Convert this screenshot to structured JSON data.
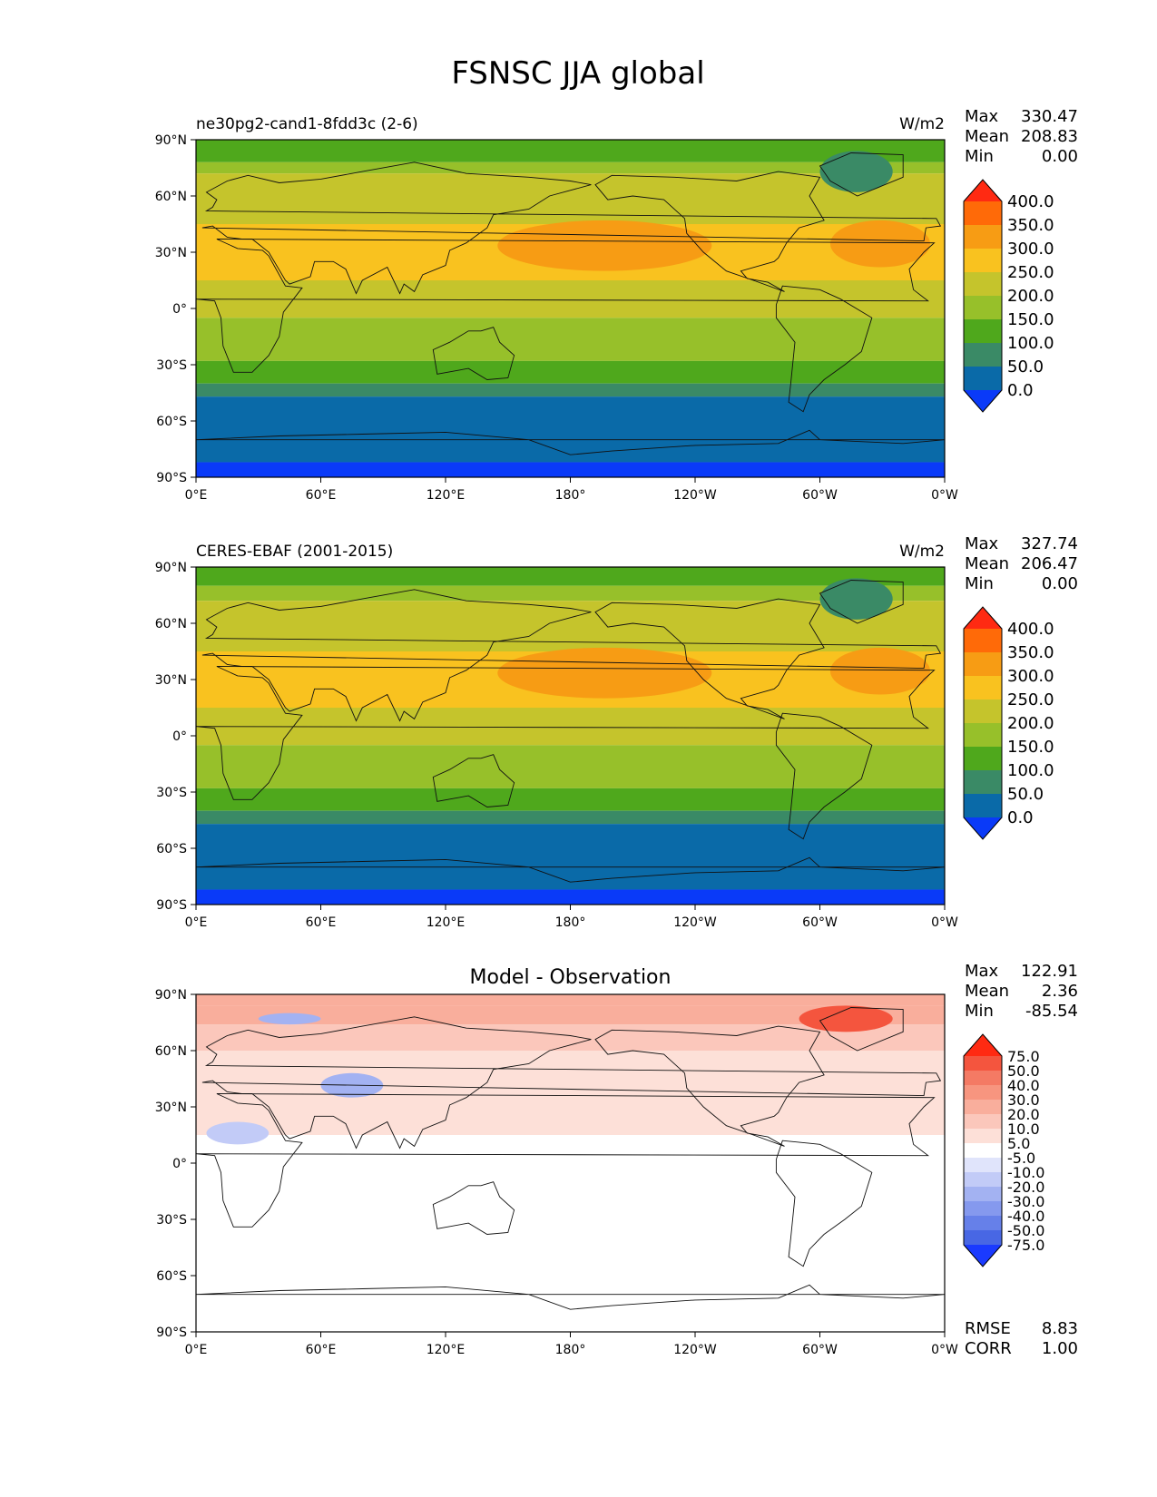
{
  "title": "FSNSC JJA global",
  "lat_ticks": [
    "90°N",
    "60°N",
    "30°N",
    "0°",
    "30°S",
    "60°S",
    "90°S"
  ],
  "lon_ticks": [
    "0°E",
    "60°E",
    "120°E",
    "180°",
    "120°W",
    "60°W",
    "0°W"
  ],
  "chart_data": [
    {
      "type": "heatmap",
      "subtitle": "ne30pg2-cand1-8fdd3c (2-6)",
      "units": "W/m2",
      "stats": {
        "labels": [
          "Max",
          "Mean",
          "Min"
        ],
        "values": [
          "330.47",
          "208.83",
          "0.00"
        ]
      },
      "colorbar": {
        "labels": [
          "400.0",
          "350.0",
          "300.0",
          "250.0",
          "200.0",
          "150.0",
          "100.0",
          "50.0",
          "0.0"
        ],
        "colors": [
          "#ff2a12",
          "#ff6a08",
          "#f79c14",
          "#f9c21f",
          "#c5c42c",
          "#97c02a",
          "#4fa81c",
          "#3a8a66",
          "#0a6aa8",
          "#0a3af8"
        ]
      },
      "zonal_bands": [
        {
          "lat_top": 90,
          "lat_bottom": 78,
          "value": 150
        },
        {
          "lat_top": 78,
          "lat_bottom": 72,
          "value": 200
        },
        {
          "lat_top": 72,
          "lat_bottom": 45,
          "value": 250
        },
        {
          "lat_top": 45,
          "lat_bottom": 15,
          "value": 280
        },
        {
          "lat_top": 15,
          "lat_bottom": -5,
          "value": 250
        },
        {
          "lat_top": -5,
          "lat_bottom": -15,
          "value": 200
        },
        {
          "lat_top": -15,
          "lat_bottom": -28,
          "value": 170
        },
        {
          "lat_top": -28,
          "lat_bottom": -40,
          "value": 130
        },
        {
          "lat_top": -40,
          "lat_bottom": -47,
          "value": 75
        },
        {
          "lat_top": -47,
          "lat_bottom": -82,
          "value": 30
        },
        {
          "lat_top": -82,
          "lat_bottom": -90,
          "value": 0
        }
      ],
      "highs": [
        {
          "name": "north-pacific-high",
          "lon_min": 145,
          "lon_max": 248,
          "lat_min": 20,
          "lat_max": 47,
          "value": 310
        },
        {
          "name": "north-atlantic-high",
          "lon_min": 305,
          "lon_max": 353,
          "lat_min": 22,
          "lat_max": 47,
          "value": 310
        },
        {
          "name": "greenland-low",
          "lon_min": 300,
          "lon_max": 335,
          "lat_min": 62,
          "lat_max": 84,
          "value": 80
        }
      ]
    },
    {
      "type": "heatmap",
      "subtitle": "CERES-EBAF (2001-2015)",
      "units": "W/m2",
      "stats": {
        "labels": [
          "Max",
          "Mean",
          "Min"
        ],
        "values": [
          "327.74",
          "206.47",
          "0.00"
        ]
      },
      "colorbar": {
        "labels": [
          "400.0",
          "350.0",
          "300.0",
          "250.0",
          "200.0",
          "150.0",
          "100.0",
          "50.0",
          "0.0"
        ],
        "colors": [
          "#ff2a12",
          "#ff6a08",
          "#f79c14",
          "#f9c21f",
          "#c5c42c",
          "#97c02a",
          "#4fa81c",
          "#3a8a66",
          "#0a6aa8",
          "#0a3af8"
        ]
      },
      "zonal_bands": [
        {
          "lat_top": 90,
          "lat_bottom": 80,
          "value": 130
        },
        {
          "lat_top": 80,
          "lat_bottom": 72,
          "value": 180
        },
        {
          "lat_top": 72,
          "lat_bottom": 45,
          "value": 250
        },
        {
          "lat_top": 45,
          "lat_bottom": 15,
          "value": 280
        },
        {
          "lat_top": 15,
          "lat_bottom": -5,
          "value": 250
        },
        {
          "lat_top": -5,
          "lat_bottom": -15,
          "value": 200
        },
        {
          "lat_top": -15,
          "lat_bottom": -28,
          "value": 170
        },
        {
          "lat_top": -28,
          "lat_bottom": -40,
          "value": 130
        },
        {
          "lat_top": -40,
          "lat_bottom": -47,
          "value": 75
        },
        {
          "lat_top": -47,
          "lat_bottom": -82,
          "value": 30
        },
        {
          "lat_top": -82,
          "lat_bottom": -90,
          "value": 0
        }
      ],
      "highs": [
        {
          "name": "north-pacific-high",
          "lon_min": 145,
          "lon_max": 248,
          "lat_min": 20,
          "lat_max": 47,
          "value": 310
        },
        {
          "name": "north-atlantic-high",
          "lon_min": 305,
          "lon_max": 353,
          "lat_min": 22,
          "lat_max": 47,
          "value": 310
        },
        {
          "name": "greenland-low",
          "lon_min": 300,
          "lon_max": 335,
          "lat_min": 62,
          "lat_max": 84,
          "value": 80
        }
      ]
    },
    {
      "type": "heatmap",
      "subtitle": "Model - Observation",
      "units": "",
      "stats": {
        "labels": [
          "Max",
          "Mean",
          "Min"
        ],
        "values": [
          "122.91",
          "2.36",
          "-85.54"
        ]
      },
      "extra_stats": {
        "labels": [
          "RMSE",
          "CORR"
        ],
        "values": [
          "8.83",
          "1.00"
        ]
      },
      "colorbar": {
        "labels": [
          "75.0",
          "50.0",
          "40.0",
          "30.0",
          "20.0",
          "10.0",
          "5.0",
          "-5.0",
          "-10.0",
          "-20.0",
          "-30.0",
          "-40.0",
          "-50.0",
          "-75.0"
        ],
        "colors": [
          "#ff2a12",
          "#f4553e",
          "#f47a64",
          "#f7957f",
          "#f9ae9c",
          "#fbc7bb",
          "#fde0d8",
          "#ffffff",
          "#e0e4fb",
          "#c2cbf7",
          "#a3b2f2",
          "#8599ee",
          "#6680e9",
          "#4867e4",
          "#1a3aff"
        ]
      },
      "zonal_bands": [
        {
          "lat_top": 90,
          "lat_bottom": 84,
          "value": 22
        },
        {
          "lat_top": 84,
          "lat_bottom": 74,
          "value": 30
        },
        {
          "lat_top": 74,
          "lat_bottom": 60,
          "value": 12
        },
        {
          "lat_top": 60,
          "lat_bottom": 15,
          "value": 7
        },
        {
          "lat_top": 15,
          "lat_bottom": -90,
          "value": 0
        }
      ],
      "highs": [
        {
          "name": "arctic-high",
          "lon_min": 290,
          "lon_max": 335,
          "lat_min": 70,
          "lat_max": 84,
          "value": 60
        },
        {
          "name": "central-asia-low",
          "lon_min": 60,
          "lon_max": 90,
          "lat_min": 35,
          "lat_max": 48,
          "value": -25
        },
        {
          "name": "sahel-low",
          "lon_min": 5,
          "lon_max": 35,
          "lat_min": 10,
          "lat_max": 22,
          "value": -15
        },
        {
          "name": "siberia-low",
          "lon_min": 30,
          "lon_max": 60,
          "lat_min": 74,
          "lat_max": 80,
          "value": -20
        }
      ]
    }
  ]
}
